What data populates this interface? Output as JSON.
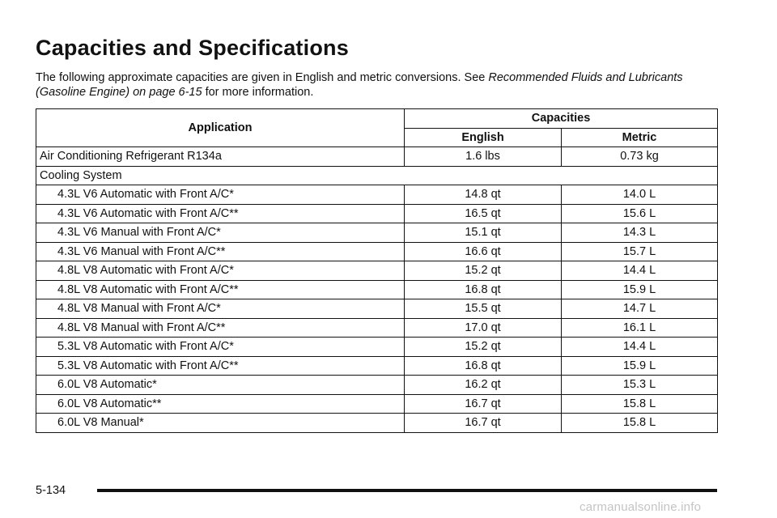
{
  "page": {
    "title": "Capacities and Specifications",
    "intro_before": "The following approximate capacities are given in English and metric conversions. See ",
    "intro_link": "Recommended Fluids and Lubricants (Gasoline Engine) on page 6-15",
    "intro_after": " for more information.",
    "page_number": "5-134",
    "watermark": "carmanualsonline.info"
  },
  "table": {
    "header_application": "Application",
    "header_capacities": "Capacities",
    "header_english": "English",
    "header_metric": "Metric",
    "rows": [
      {
        "application": "Air Conditioning Refrigerant R134a",
        "english": "1.6 lbs",
        "metric": "0.73 kg"
      },
      {
        "application": "Cooling System",
        "english": "",
        "metric": ""
      },
      {
        "application": "4.3L V6 Automatic with Front A/C*",
        "english": "14.8 qt",
        "metric": "14.0 L"
      },
      {
        "application": "4.3L V6 Automatic with Front A/C**",
        "english": "16.5 qt",
        "metric": "15.6 L"
      },
      {
        "application": "4.3L V6 Manual with Front A/C*",
        "english": "15.1 qt",
        "metric": "14.3 L"
      },
      {
        "application": "4.3L V6 Manual with Front A/C**",
        "english": "16.6 qt",
        "metric": "15.7 L"
      },
      {
        "application": "4.8L V8 Automatic with Front A/C*",
        "english": "15.2 qt",
        "metric": "14.4 L"
      },
      {
        "application": "4.8L V8 Automatic with Front A/C**",
        "english": "16.8 qt",
        "metric": "15.9 L"
      },
      {
        "application": "4.8L V8 Manual with Front A/C*",
        "english": "15.5 qt",
        "metric": "14.7 L"
      },
      {
        "application": "4.8L V8 Manual with Front A/C**",
        "english": "17.0 qt",
        "metric": "16.1 L"
      },
      {
        "application": "5.3L V8 Automatic with Front A/C*",
        "english": "15.2 qt",
        "metric": "14.4 L"
      },
      {
        "application": "5.3L V8 Automatic with Front A/C**",
        "english": "16.8 qt",
        "metric": "15.9 L"
      },
      {
        "application": "6.0L V8 Automatic*",
        "english": "16.2 qt",
        "metric": "15.3 L"
      },
      {
        "application": "6.0L V8 Automatic**",
        "english": "16.7 qt",
        "metric": "15.8 L"
      },
      {
        "application": "6.0L V8 Manual*",
        "english": "16.7 qt",
        "metric": "15.8 L"
      }
    ]
  }
}
